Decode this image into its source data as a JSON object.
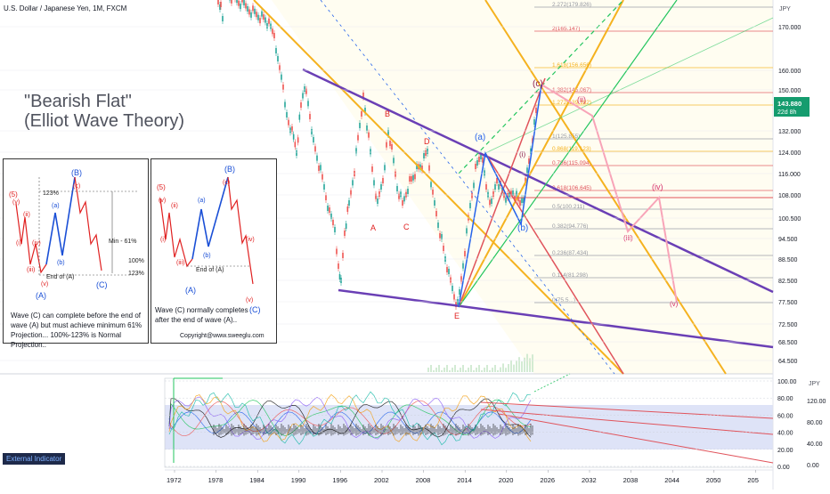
{
  "header": {
    "symbol_title": "U.S. Dollar / Japanese Yen, 1M, FXCM"
  },
  "title": {
    "line1": "\"Bearish Flat\"",
    "line2": "(Elliot Wave Theory)"
  },
  "colors": {
    "purple": "#6a3fb5",
    "orange": "#f5b21f",
    "green": "#22c55e",
    "red": "#e0535b",
    "pink": "#f8a4b8",
    "blue": "#2563eb",
    "wave_red": "#e02020",
    "price_badge": "#159c6e"
  },
  "price_axis": {
    "unit": "JPY",
    "ticks": [
      "170.000",
      "160.000",
      "150.000",
      "143.880",
      "132.000",
      "124.000",
      "116.000",
      "108.000",
      "100.500",
      "94.500",
      "88.500",
      "82.500",
      "77.500",
      "72.500",
      "68.500",
      "64.500"
    ],
    "last_price": "143.880",
    "last_price_sub": "22d 8h"
  },
  "time_axis": {
    "ticks": [
      "1972",
      "1978",
      "1984",
      "1990",
      "1996",
      "2002",
      "2008",
      "2014",
      "2020",
      "2026",
      "2032",
      "2038",
      "2044",
      "2050",
      "205"
    ]
  },
  "indicator_axis": {
    "left_ticks": [
      "100.00",
      "80.00",
      "60.00",
      "40.00",
      "20.00",
      "0.00"
    ],
    "right_unit": "JPY",
    "right_ticks": [
      "120.00",
      "80.00",
      "40.00",
      "0.00"
    ],
    "label": "External Indicator"
  },
  "fib_levels": [
    {
      "ratio": "2.272",
      "price": "179.826"
    },
    {
      "ratio": "2",
      "price": "165.147"
    },
    {
      "ratio": "1.618",
      "price": "156.656"
    },
    {
      "ratio": "1.382",
      "price": "145.067"
    },
    {
      "ratio": "1.272",
      "price": "139.182"
    },
    {
      "ratio": "1",
      "price": "125.855"
    },
    {
      "ratio": "0.868",
      "price": "119.123"
    },
    {
      "ratio": "0.786",
      "price": "115.094"
    },
    {
      "ratio": "0.618",
      "price": "106.645"
    },
    {
      "ratio": "0.5",
      "price": "100.211"
    },
    {
      "ratio": "0.382",
      "price": "94.776"
    },
    {
      "ratio": "0.236",
      "price": "87.434"
    },
    {
      "ratio": "0.114",
      "price": "81.298"
    },
    {
      "ratio": "0",
      "price": "75.5..."
    }
  ],
  "wave_labels": {
    "B": "B",
    "D": "D",
    "A": "A",
    "C": "C",
    "E": "E",
    "a": "(a)",
    "b": "(b)",
    "c": "(c)",
    "i": "(i)",
    "ii": "(ii)",
    "iii": "(iii)",
    "iv": "(iv)",
    "v": "(v)"
  },
  "inset1": {
    "labels": {
      "w5": "(5)",
      "B": "(B)",
      "A": "(A)",
      "C": "(C)",
      "c": "(c)",
      "a": "(a)",
      "b": "(b)",
      "v1": "(v)",
      "v2": "(v)",
      "iv": "(iv)",
      "iii": "(iii)",
      "ii": "(ii)",
      "i": "(i)",
      "pct123": "123%",
      "min61": "Min - 61%",
      "pct100": "100%",
      "pct123b": "123%",
      "end_a": "End of (A)"
    },
    "note": [
      "Wave (C) can complete before the end of",
      "wave (A) but must achieve minimum 61%",
      "Projection... 100%-123% is Normal Projection.."
    ]
  },
  "inset2": {
    "labels": {
      "w5": "(5)",
      "B": "(B)",
      "A": "(A)",
      "C": "(C)",
      "c": "(c)",
      "a": "(a)",
      "b": "(b)",
      "v1": "(v)",
      "v2": "(v)",
      "iv": "(iv)",
      "iii": "(iii)",
      "ii": "(ii)",
      "i": "(i)",
      "end_a": "End of (A)"
    },
    "note": [
      "Wave (C) normally completes",
      "after the end of wave (A).."
    ],
    "copyright": "Copyright@www.sweeglu.com"
  }
}
